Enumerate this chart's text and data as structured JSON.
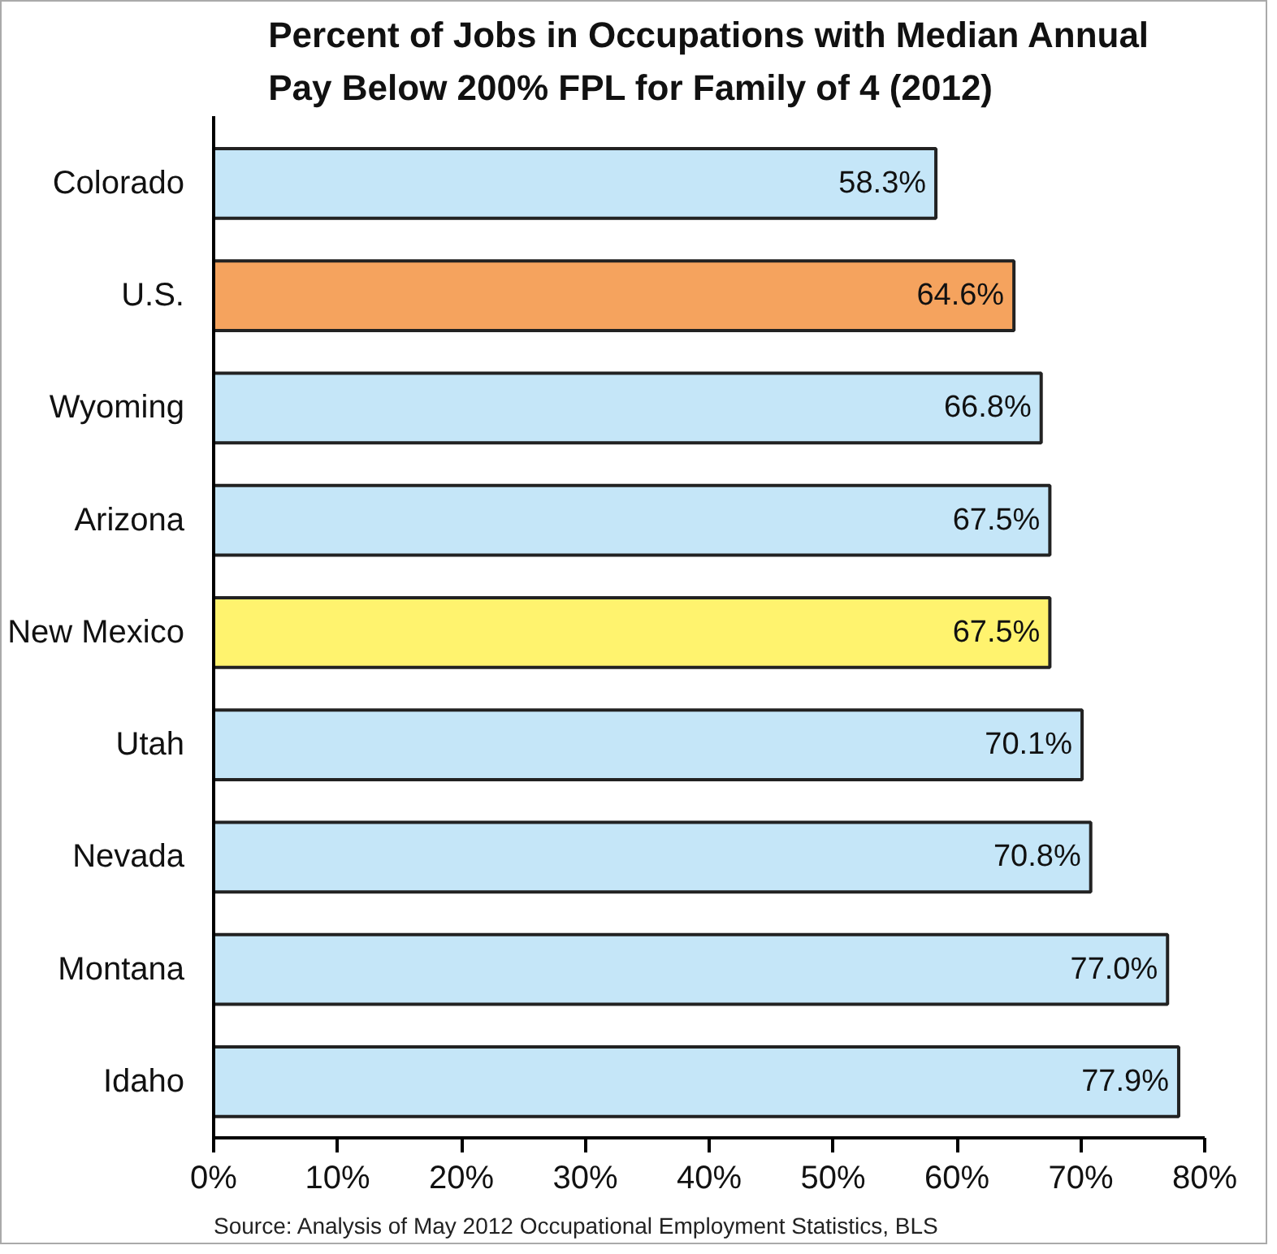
{
  "chart_data": {
    "type": "bar",
    "orientation": "horizontal",
    "title": "Percent of Jobs in Occupations with Median Annual\nPay Below 200% FPL for Family of 4 (2012)",
    "categories": [
      "Colorado",
      "U.S.",
      "Wyoming",
      "Arizona",
      "New Mexico",
      "Utah",
      "Nevada",
      "Montana",
      "Idaho"
    ],
    "values": [
      58.3,
      64.6,
      66.8,
      67.5,
      67.5,
      70.1,
      70.8,
      77.0,
      77.9
    ],
    "value_labels": [
      "58.3%",
      "64.6%",
      "66.8%",
      "67.5%",
      "67.5%",
      "70.1%",
      "70.8%",
      "77.0%",
      "77.9%"
    ],
    "colors": [
      "#c5e6f8",
      "#f5a35e",
      "#c5e6f8",
      "#c5e6f8",
      "#fff36e",
      "#c5e6f8",
      "#c5e6f8",
      "#c5e6f8",
      "#c5e6f8"
    ],
    "xlim": [
      0,
      80
    ],
    "xticks": [
      {
        "value": 0,
        "label": "0%"
      },
      {
        "value": 10,
        "label": "10%"
      },
      {
        "value": 20,
        "label": "20%"
      },
      {
        "value": 30,
        "label": "30%"
      },
      {
        "value": 40,
        "label": "40%"
      },
      {
        "value": 50,
        "label": "50%"
      },
      {
        "value": 60,
        "label": "60%"
      },
      {
        "value": 70,
        "label": "70%"
      },
      {
        "value": 80,
        "label": "80%"
      }
    ],
    "grid": false,
    "annotations": [
      "Source: Analysis of May 2012 Occupational Employment Statistics, BLS"
    ]
  }
}
